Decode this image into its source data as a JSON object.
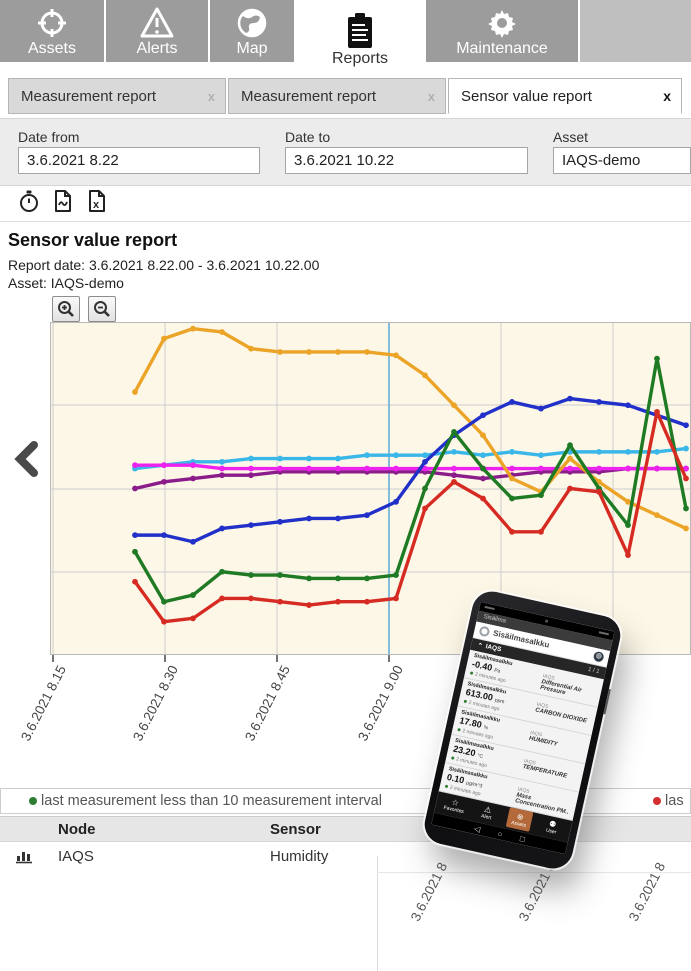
{
  "nav": {
    "items": [
      {
        "label": "Assets",
        "icon": "target-icon",
        "active": false
      },
      {
        "label": "Alerts",
        "icon": "warning-icon",
        "active": false
      },
      {
        "label": "Map",
        "icon": "globe-icon",
        "active": false
      },
      {
        "label": "Reports",
        "icon": "clipboard-icon",
        "active": true
      },
      {
        "label": "Maintenance",
        "icon": "gear-icon",
        "active": false
      }
    ]
  },
  "tabs": [
    {
      "label": "Measurement report",
      "close": "x",
      "active": false
    },
    {
      "label": "Measurement report",
      "close": "x",
      "active": false
    },
    {
      "label": "Sensor value report",
      "close": "x",
      "active": true
    }
  ],
  "filters": {
    "date_from": {
      "label": "Date from",
      "value": "3.6.2021 8.22"
    },
    "date_to": {
      "label": "Date to",
      "value": "3.6.2021 10.22"
    },
    "asset": {
      "label": "Asset",
      "value": "IAQS-demo"
    }
  },
  "toolbar": {
    "icons": [
      "stopwatch-icon",
      "pdf-export-icon",
      "excel-export-icon"
    ]
  },
  "report": {
    "title": "Sensor value report",
    "date_line": "Report date: 3.6.2021 8.22.00 - 3.6.2021 10.22.00",
    "asset_line": "Asset: IAQS-demo"
  },
  "chart_data": {
    "type": "line",
    "title": "Sensor value report chart",
    "x_tick_labels": [
      "3.6.2021 8.15",
      "3.6.2021 8.30",
      "3.6.2021 8.45",
      "3.6.2021 9.00"
    ],
    "highlight_x": "3.6.2021 9.00",
    "ylabel": "",
    "y_axis_note": "no y-axis labels visible; values are percent of plot height (0=bottom, 100=top)",
    "grid": true,
    "background": "#fdf7e7",
    "grid_color": "#cccccc",
    "highlight_line_color": "#67aed6",
    "series": [
      {
        "name": "purple",
        "color": "#8a1d8a",
        "values": [
          50,
          52,
          53,
          54,
          54,
          55,
          55,
          55,
          55,
          55,
          55,
          54,
          53,
          54,
          55,
          55,
          55,
          56,
          56,
          56
        ]
      },
      {
        "name": "cyan",
        "color": "#3ab7e8",
        "values": [
          56,
          57,
          58,
          58,
          59,
          59,
          59,
          59,
          60,
          60,
          60,
          61,
          60,
          61,
          60,
          61,
          61,
          61,
          61,
          62
        ]
      },
      {
        "name": "magenta",
        "color": "#ee22ee",
        "values": [
          57,
          57,
          57,
          56,
          56,
          56,
          56,
          56,
          56,
          56,
          56,
          56,
          56,
          56,
          56,
          56,
          56,
          56,
          56,
          56
        ]
      },
      {
        "name": "orange",
        "color": "#eba427",
        "values": [
          79,
          95,
          98,
          97,
          92,
          91,
          91,
          91,
          91,
          90,
          84,
          75,
          66,
          53,
          49,
          59,
          52,
          46,
          42,
          38
        ]
      },
      {
        "name": "blue",
        "color": "#2030c8",
        "values": [
          36,
          36,
          34,
          38,
          39,
          40,
          41,
          41,
          42,
          46,
          58,
          66,
          72,
          76,
          74,
          77,
          76,
          75,
          72,
          69
        ]
      },
      {
        "name": "green",
        "color": "#1f7a24",
        "values": [
          31,
          16,
          18,
          25,
          24,
          24,
          23,
          23,
          23,
          24,
          50,
          67,
          56,
          47,
          48,
          63,
          50,
          39,
          89,
          44
        ]
      },
      {
        "name": "red",
        "color": "#d62b22",
        "values": [
          22,
          10,
          11,
          17,
          17,
          16,
          15,
          16,
          16,
          17,
          44,
          52,
          47,
          37,
          37,
          50,
          49,
          30,
          73,
          53
        ]
      }
    ]
  },
  "legend": {
    "green": {
      "color": "#2e7d32",
      "text": "last measurement less than 10 measurement interval"
    },
    "red": {
      "color": "#d32f2f",
      "text": "las"
    }
  },
  "table": {
    "headers": {
      "node": "Node",
      "sensor": "Sensor"
    },
    "rows": [
      {
        "node": "IAQS",
        "sensor": "Humidity",
        "icon": "bar-chart-icon"
      }
    ]
  },
  "bottom_axis": {
    "labels": [
      "3.6.2021 8",
      "3.6.2021 8",
      "3.6.2021 8"
    ]
  },
  "phone": {
    "status_title": "Sisäilma",
    "app_name": "Sisäilmasalkku",
    "section": "IAQS",
    "pager": "1 / 1",
    "cards": [
      {
        "node": "Sisäilmasalkku",
        "value": "-0.40",
        "unit": "Pa",
        "time": "2 minutes ago",
        "asset": "IAQS",
        "sensor": "Differential Air Pressure"
      },
      {
        "node": "Sisäilmasalkku",
        "value": "613.00",
        "unit": "ppm",
        "time": "2 minutes ago",
        "asset": "IAQS",
        "sensor": "CARBON DIOXIDE"
      },
      {
        "node": "Sisäilmasalkku",
        "value": "17.80",
        "unit": "%",
        "time": "2 minutes ago",
        "asset": "IAQS",
        "sensor": "HUMIDITY"
      },
      {
        "node": "Sisäilmasalkku",
        "value": "23.20",
        "unit": "°C",
        "time": "2 minutes ago",
        "asset": "IAQS",
        "sensor": "TEMPERATURE"
      },
      {
        "node": "Sisäilmasalkku",
        "value": "0.10",
        "unit": "µg/m^3",
        "time": "2 minutes ago",
        "asset": "IAQS",
        "sensor": "Mass Concentration PM.."
      }
    ],
    "nav": [
      {
        "label": "Favorites",
        "icon": "star-icon",
        "glyph": "☆",
        "active": false
      },
      {
        "label": "Alert",
        "icon": "warning-icon",
        "glyph": "⚠",
        "active": false
      },
      {
        "label": "Assets",
        "icon": "assets-icon",
        "glyph": "⊗",
        "active": true
      },
      {
        "label": "User",
        "icon": "person-icon",
        "glyph": "⚉",
        "active": false
      }
    ],
    "android": {
      "back": "◁",
      "home": "○",
      "recents": "□"
    },
    "accent": "#b3693a"
  },
  "colors": {
    "nav_gray": "#9c9c9c",
    "tab_gray": "#d9d9d9",
    "filter_bg": "#ececec",
    "chart_bg": "#fdf7e7"
  }
}
